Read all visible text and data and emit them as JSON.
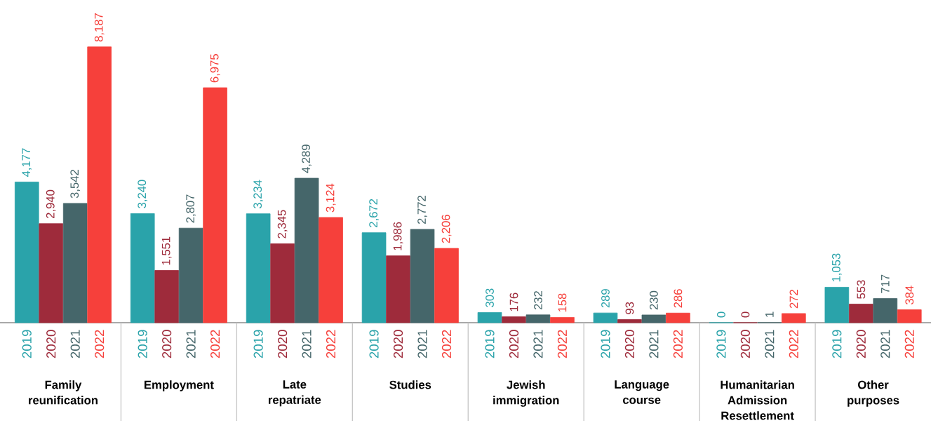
{
  "chart_data": {
    "type": "bar",
    "categories": [
      "Family reunification",
      "Employment",
      "Late repatriate",
      "Studies",
      "Jewish immigration",
      "Language course",
      "Humanitarian Admission Resettlement",
      "Other purposes"
    ],
    "series": [
      {
        "name": "2019",
        "color": "#2aa3aa",
        "values": [
          4177,
          3240,
          3234,
          2672,
          303,
          289,
          0,
          1053
        ],
        "value_labels": [
          "4,177",
          "3,240",
          "3,234",
          "2,672",
          "303",
          "289",
          "0",
          "1,053"
        ]
      },
      {
        "name": "2020",
        "color": "#9e2b3b",
        "values": [
          2940,
          1551,
          2345,
          1986,
          176,
          93,
          0,
          553
        ],
        "value_labels": [
          "2,940",
          "1,551",
          "2,345",
          "1,986",
          "176",
          "93",
          "0",
          "553"
        ]
      },
      {
        "name": "2021",
        "color": "#45666a",
        "values": [
          3542,
          2807,
          4289,
          2772,
          232,
          230,
          1,
          717
        ],
        "value_labels": [
          "3,542",
          "2,807",
          "4,289",
          "2,772",
          "232",
          "230",
          "1",
          "717"
        ]
      },
      {
        "name": "2022",
        "color": "#f6403b",
        "values": [
          8187,
          6975,
          3124,
          2206,
          158,
          286,
          272,
          384
        ],
        "value_labels": [
          "8,187",
          "6,975",
          "3,124",
          "2,206",
          "158",
          "286",
          "272",
          "384"
        ]
      }
    ]
  }
}
